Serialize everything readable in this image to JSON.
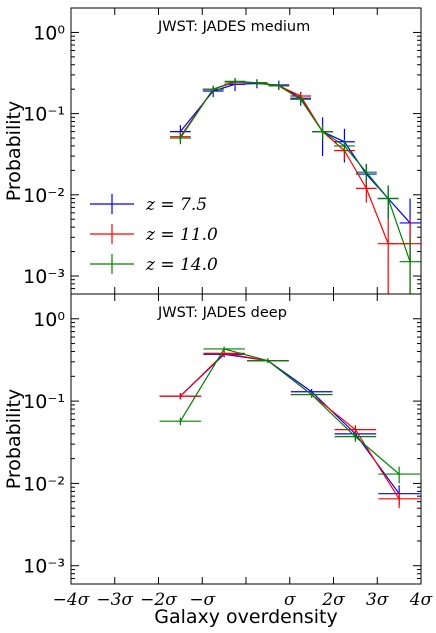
{
  "chart_data": [
    {
      "type": "line",
      "title": "JWST: JADES medium",
      "ylabel": "Probability",
      "xlabel": "Galaxy overdensity",
      "yscale": "log",
      "ylim": [
        0.0006,
        2.0
      ],
      "xlim": [
        -4,
        4
      ],
      "x_ticks": [
        "−4σ",
        "−3σ",
        "−2σ",
        "−σ",
        "",
        "σ",
        "2σ",
        "3σ",
        "4σ"
      ],
      "y_ticks": [
        "10⁻³",
        "10⁻²",
        "10⁻¹",
        "10⁰"
      ],
      "legend_position": "lower-left",
      "series": [
        {
          "name": "z = 7.5",
          "color": "#0000ff",
          "x": [
            -1.5,
            -0.75,
            -0.25,
            0.25,
            0.75,
            1.25,
            1.75,
            2.25,
            2.75,
            3.25,
            3.75
          ],
          "y": [
            0.06,
            0.19,
            0.23,
            0.235,
            0.225,
            0.155,
            0.06,
            0.045,
            0.018,
            0.009,
            0.0045
          ],
          "yerr_low": [
            0.012,
            0.03,
            0.04,
            0.03,
            0.03,
            0.03,
            0.03,
            0.02,
            0.006,
            0.004,
            0.003
          ],
          "yerr_high": [
            0.012,
            0.03,
            0.04,
            0.03,
            0.03,
            0.03,
            0.03,
            0.02,
            0.006,
            0.004,
            0.0045
          ]
        },
        {
          "name": "z = 11.0",
          "color": "#ff0000",
          "x": [
            -1.5,
            -0.75,
            -0.25,
            0.25,
            0.75,
            1.25,
            1.75,
            2.25,
            2.75,
            3.25,
            3.75
          ],
          "y": [
            0.052,
            0.2,
            0.245,
            0.24,
            0.22,
            0.165,
            0.06,
            0.035,
            0.012,
            0.0025,
            0.0025
          ],
          "yerr_low": [
            0.008,
            0.02,
            0.025,
            0.02,
            0.02,
            0.02,
            0.012,
            0.008,
            0.004,
            0.0019,
            0.0019
          ],
          "yerr_high": [
            0.008,
            0.02,
            0.025,
            0.02,
            0.02,
            0.02,
            0.012,
            0.008,
            0.004,
            0.0025,
            0.0025
          ]
        },
        {
          "name": "z = 14.0",
          "color": "#008000",
          "x": [
            -1.5,
            -0.75,
            -0.25,
            0.25,
            0.75,
            1.25,
            1.75,
            2.25,
            2.75,
            3.25,
            3.75
          ],
          "y": [
            0.05,
            0.2,
            0.25,
            0.24,
            0.22,
            0.15,
            0.06,
            0.04,
            0.019,
            0.009,
            0.0015
          ],
          "yerr_low": [
            0.008,
            0.02,
            0.025,
            0.02,
            0.02,
            0.02,
            0.012,
            0.008,
            0.005,
            0.004,
            0.0009
          ],
          "yerr_high": [
            0.008,
            0.02,
            0.025,
            0.02,
            0.02,
            0.02,
            0.012,
            0.008,
            0.005,
            0.004,
            0.0015
          ]
        }
      ]
    },
    {
      "type": "line",
      "title": "JWST: JADES deep",
      "ylabel": "Probability",
      "xlabel": "Galaxy overdensity",
      "yscale": "log",
      "ylim": [
        0.0006,
        2.0
      ],
      "xlim": [
        -4,
        4
      ],
      "x_ticks": [
        "−4σ",
        "−3σ",
        "−2σ",
        "−σ",
        "",
        "σ",
        "2σ",
        "3σ",
        "4σ"
      ],
      "y_ticks": [
        "10⁻³",
        "10⁻²",
        "10⁻¹",
        "10⁰"
      ],
      "series": [
        {
          "name": "z = 7.5",
          "color": "#0000ff",
          "x": [
            -1.5,
            -0.5,
            0.5,
            1.5,
            2.5,
            3.5
          ],
          "y": [
            0.115,
            0.37,
            0.31,
            0.13,
            0.04,
            0.0075
          ],
          "yerr_low": [
            0.01,
            0.03,
            0.02,
            0.01,
            0.006,
            0.002
          ],
          "yerr_high": [
            0.01,
            0.03,
            0.02,
            0.01,
            0.006,
            0.002
          ]
        },
        {
          "name": "z = 11.0",
          "color": "#ff0000",
          "x": [
            -1.5,
            -0.5,
            0.5,
            1.5,
            2.5,
            3.5
          ],
          "y": [
            0.115,
            0.38,
            0.31,
            0.12,
            0.045,
            0.0065
          ],
          "yerr_low": [
            0.01,
            0.03,
            0.02,
            0.01,
            0.006,
            0.0015
          ],
          "yerr_high": [
            0.01,
            0.03,
            0.02,
            0.01,
            0.006,
            0.0015
          ]
        },
        {
          "name": "z = 14.0",
          "color": "#008000",
          "x": [
            -1.5,
            -0.5,
            0.5,
            1.5,
            2.5,
            3.5
          ],
          "y": [
            0.057,
            0.43,
            0.31,
            0.12,
            0.037,
            0.013
          ],
          "yerr_low": [
            0.006,
            0.03,
            0.02,
            0.01,
            0.005,
            0.003
          ],
          "yerr_high": [
            0.006,
            0.03,
            0.02,
            0.01,
            0.005,
            0.003
          ]
        }
      ]
    }
  ]
}
